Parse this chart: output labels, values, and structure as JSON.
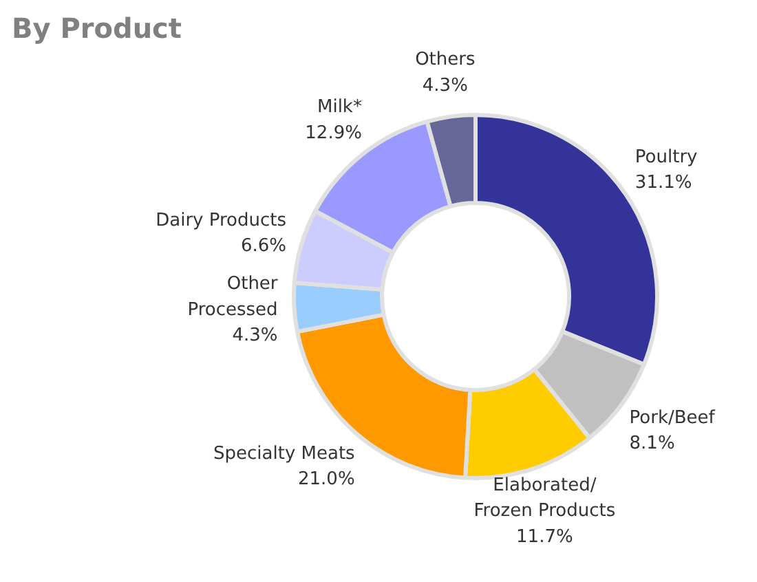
{
  "chart_data": {
    "type": "donut",
    "title": "By Product",
    "categories": [
      "Poultry",
      "Pork/Beef",
      "Elaborated/\nFrozen Products",
      "Specialty Meats",
      "Other\nProcessed",
      "Dairy Products",
      "Milk*",
      "Others"
    ],
    "values": [
      31.1,
      8.1,
      11.7,
      21.0,
      4.3,
      6.6,
      12.9,
      4.3
    ],
    "value_labels": [
      "31.1%",
      "8.1%",
      "11.7%",
      "21.0%",
      "4.3%",
      "6.6%",
      "12.9%",
      "4.3%"
    ],
    "colors": [
      "#333399",
      "#c0c0c0",
      "#ffcc00",
      "#ff9900",
      "#99ccff",
      "#ccccff",
      "#9999ff",
      "#666699"
    ]
  }
}
